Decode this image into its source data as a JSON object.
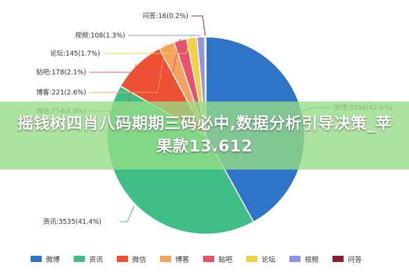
{
  "chart_data": {
    "type": "pie",
    "title": "",
    "legend_position": "bottom",
    "slices": [
      {
        "name": "微博",
        "value": 3586,
        "percent": 42.0,
        "color": "#2e75c7",
        "label": "微博:3586(42.0%)"
      },
      {
        "name": "资讯",
        "value": 3535,
        "percent": 41.4,
        "color": "#3fbf85",
        "label": "资讯:3535(41.4%)"
      },
      {
        "name": "微信",
        "value": 754,
        "percent": 8.8,
        "color": "#ee5033",
        "label": "微信:754(8.8%)"
      },
      {
        "name": "博客",
        "value": 221,
        "percent": 2.6,
        "color": "#f4a35c",
        "label": "博客:221(2.6%)"
      },
      {
        "name": "贴吧",
        "value": 178,
        "percent": 2.1,
        "color": "#e8506d",
        "label": "贴吧:178(2.1%)"
      },
      {
        "name": "论坛",
        "value": 145,
        "percent": 1.7,
        "color": "#f0d044",
        "label": "论坛:145(1.7%)"
      },
      {
        "name": "视频",
        "value": 108,
        "percent": 1.3,
        "color": "#8f92e6",
        "label": "视频:108(1.3%)"
      },
      {
        "name": "问答",
        "value": 16,
        "percent": 0.2,
        "color": "#8b1d2e",
        "label": "问答:16(0.2%)"
      }
    ]
  },
  "banner": {
    "text": "摇钱树四肖八码期期三码必中,数据分析引导决策_苹果款13.612"
  }
}
